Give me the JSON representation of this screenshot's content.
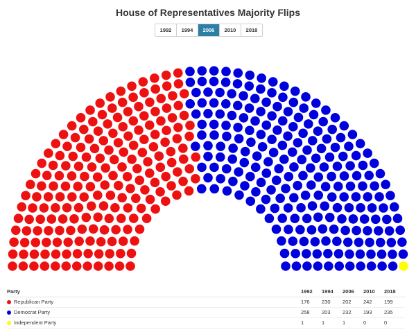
{
  "chart_data": {
    "type": "parliament",
    "title": "House of Representatives Majority Flips",
    "years": [
      "1992",
      "1994",
      "2006",
      "2010",
      "2018"
    ],
    "selected_year": "2006",
    "party_header": "Party",
    "series": [
      {
        "name": "Republican Party",
        "color": "#ee1111",
        "values": [
          176,
          230,
          202,
          242,
          199
        ]
      },
      {
        "name": "Democrat Party",
        "color": "#0000dd",
        "values": [
          258,
          203,
          232,
          193,
          235
        ]
      },
      {
        "name": "Independent Party",
        "color": "#ffff00",
        "values": [
          1,
          1,
          1,
          0,
          0
        ]
      }
    ]
  }
}
